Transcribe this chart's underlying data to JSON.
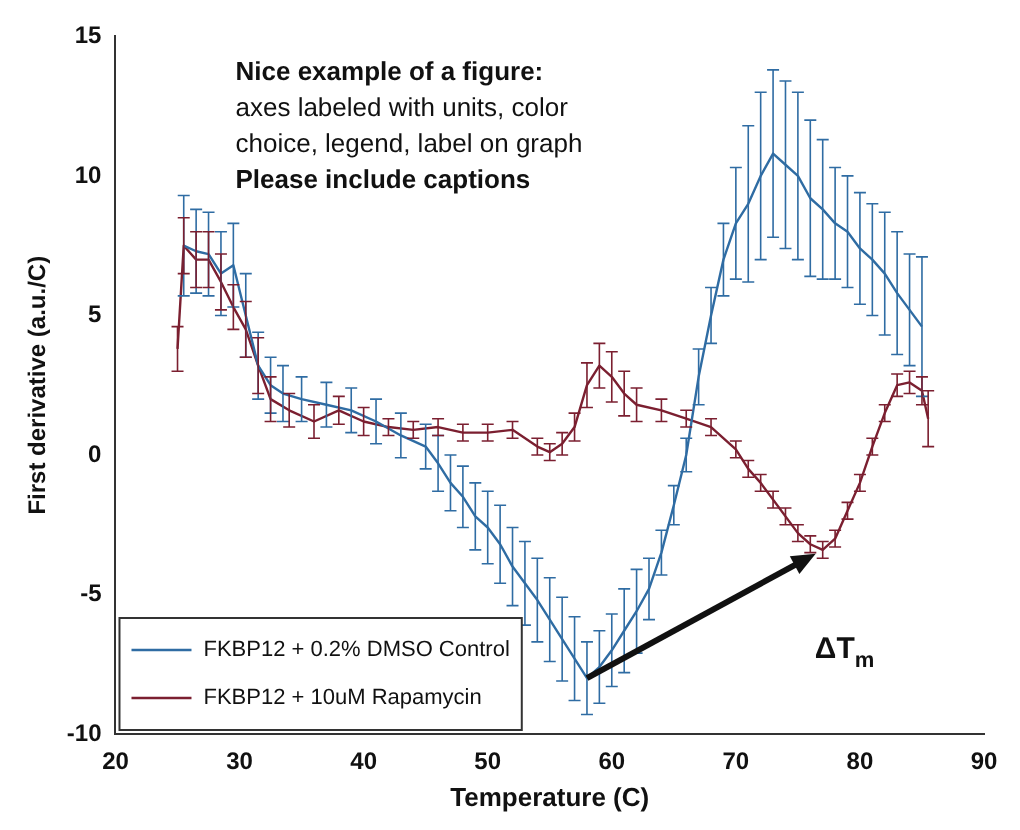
{
  "chart_data": {
    "type": "line",
    "xlabel": "Temperature (C)",
    "ylabel": "First derivative (a.u./C)",
    "xlim": [
      20,
      90
    ],
    "xticks": [
      20,
      30,
      40,
      50,
      60,
      70,
      80,
      90
    ],
    "ylim": [
      -10,
      15
    ],
    "yticks": [
      -10,
      -5,
      0,
      5,
      10,
      15
    ],
    "grid": false,
    "legend": "bottom left",
    "marker": "none",
    "line_style": "solid",
    "annotations": [
      "Nice example of a figure:",
      "axes labeled with units, color",
      "choice, legend, label on graph",
      "Please include captions",
      "ΔT$_{m}$"
    ],
    "series": [
      {
        "name": "FKBP12 + 0.2% DMSO Control",
        "color": "#2f6ca3",
        "x": [
          25.5,
          26.5,
          27.5,
          28.5,
          29.5,
          30.5,
          31.5,
          32.5,
          33.5,
          35,
          37,
          39,
          41,
          43,
          45,
          46,
          47,
          48,
          49,
          50,
          51,
          52,
          53,
          54,
          55,
          56,
          57,
          58,
          59,
          60,
          61,
          62,
          63,
          64,
          65,
          66,
          67,
          68,
          69,
          70,
          71,
          72,
          73,
          74,
          75,
          76,
          77,
          78,
          79,
          80,
          81,
          82,
          83,
          84,
          85
        ],
        "values": [
          7.5,
          7.3,
          7.2,
          6.5,
          6.8,
          5,
          3.2,
          2.5,
          2.2,
          2,
          1.8,
          1.6,
          1.2,
          0.7,
          0.3,
          -0.3,
          -1,
          -1.5,
          -2.2,
          -2.6,
          -3.2,
          -4,
          -4.6,
          -5.2,
          -5.9,
          -6.6,
          -7.3,
          -8,
          -7.6,
          -7,
          -6.3,
          -5.6,
          -4.8,
          -3.5,
          -1.8,
          0,
          2.8,
          5,
          7,
          8.3,
          9,
          10,
          10.8,
          10.4,
          10,
          9.2,
          8.8,
          8.3,
          8,
          7.4,
          7,
          6.5,
          5.8,
          5.2,
          4.6
        ],
        "errors": [
          1.8,
          1.5,
          1.5,
          1.5,
          1.5,
          1.5,
          1.2,
          1,
          1,
          0.8,
          0.8,
          0.8,
          0.8,
          0.8,
          0.8,
          1,
          1,
          1.1,
          1.2,
          1.3,
          1.4,
          1.4,
          1.5,
          1.5,
          1.5,
          1.5,
          1.5,
          1.3,
          1.3,
          1.3,
          1.5,
          1.5,
          1.1,
          0.8,
          0.7,
          0.6,
          1,
          1,
          1.3,
          2,
          2.8,
          3,
          3,
          3,
          3,
          2.8,
          2.5,
          2,
          2,
          2,
          2,
          2.2,
          2.2,
          2,
          2.5
        ]
      },
      {
        "name": "FKBP12 + 10uM Rapamycin",
        "color": "#7b1f30",
        "x": [
          25,
          25.5,
          26.5,
          27.5,
          28.5,
          29.5,
          30.5,
          31.5,
          32.5,
          34,
          36,
          38,
          40,
          42,
          44,
          46,
          48,
          50,
          52,
          54,
          55,
          56,
          57,
          58,
          59,
          60,
          61,
          62,
          64,
          66,
          68,
          70,
          71,
          72,
          73,
          74,
          75,
          76,
          77,
          78,
          79,
          80,
          81,
          82,
          83,
          84,
          85,
          85.5
        ],
        "values": [
          3.8,
          7.5,
          7,
          7,
          6.2,
          5.3,
          4.5,
          3.2,
          2,
          1.6,
          1.2,
          1.6,
          1.2,
          1,
          0.9,
          1,
          0.8,
          0.8,
          0.9,
          0.3,
          0.1,
          0.4,
          1,
          2.5,
          3.2,
          2.8,
          2.2,
          1.8,
          1.6,
          1.3,
          1,
          0.2,
          -0.5,
          -1,
          -1.6,
          -2.2,
          -2.8,
          -3.2,
          -3.4,
          -3,
          -2,
          -1,
          0.3,
          1.5,
          2.5,
          2.6,
          2.3,
          1.3
        ],
        "errors": [
          0.8,
          1,
          1,
          1,
          1,
          0.8,
          1,
          1,
          0.8,
          0.6,
          0.6,
          0.5,
          0.5,
          0.3,
          0.3,
          0.3,
          0.3,
          0.3,
          0.3,
          0.3,
          0.3,
          0.4,
          0.5,
          0.8,
          0.8,
          0.9,
          0.8,
          0.6,
          0.4,
          0.3,
          0.3,
          0.3,
          0.3,
          0.3,
          0.3,
          0.3,
          0.3,
          0.3,
          0.3,
          0.3,
          0.3,
          0.3,
          0.3,
          0.3,
          0.4,
          0.4,
          0.5,
          1
        ]
      }
    ]
  }
}
